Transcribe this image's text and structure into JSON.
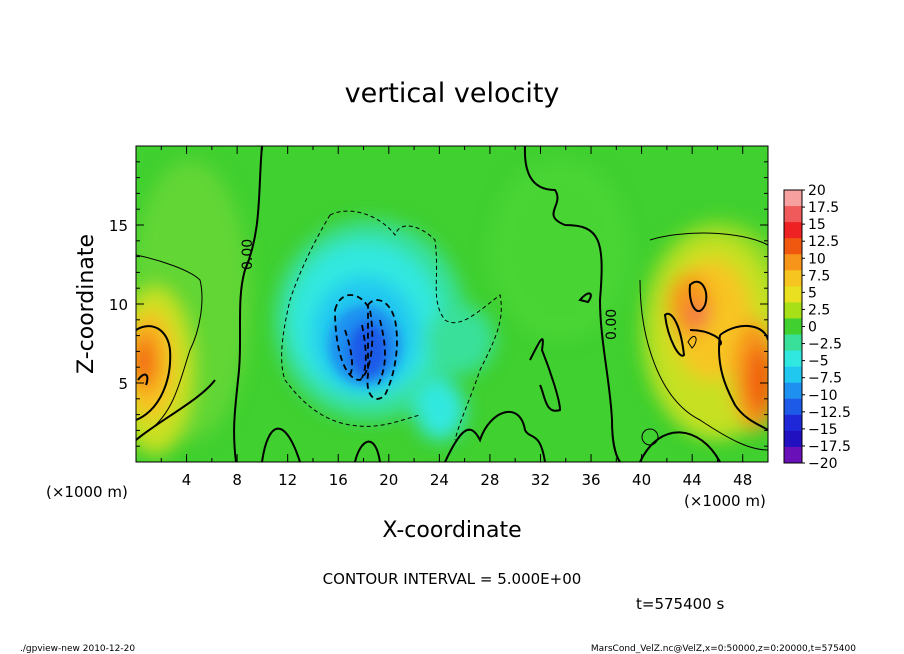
{
  "chart_data": {
    "type": "heatmap",
    "title": "vertical velocity",
    "xlabel": "X-coordinate",
    "ylabel": "Z-coordinate",
    "x_unit_left": "(×1000 m)",
    "x_unit_right": "(×1000 m)",
    "xlim": [
      0,
      50
    ],
    "ylim": [
      0,
      20
    ],
    "xticks": [
      "4",
      "8",
      "12",
      "16",
      "20",
      "24",
      "28",
      "32",
      "36",
      "40",
      "44",
      "48"
    ],
    "xtick_values": [
      4,
      8,
      12,
      16,
      20,
      24,
      28,
      32,
      36,
      40,
      44,
      48
    ],
    "yticks": [
      "5",
      "10",
      "15"
    ],
    "ytick_values": [
      5,
      10,
      15
    ],
    "colorbar": {
      "labels": [
        "20",
        "17.5",
        "15",
        "12.5",
        "10",
        "7.5",
        "5",
        "2.5",
        "0",
        "−2.5",
        "−5",
        "−7.5",
        "−10",
        "−12.5",
        "−15",
        "−17.5",
        "−20"
      ],
      "colors": [
        "#f7a0a0",
        "#f05a5a",
        "#ee2222",
        "#f05810",
        "#f7951a",
        "#f7c520",
        "#e8e020",
        "#a8e018",
        "#40d030",
        "#38e09a",
        "#30e8e0",
        "#20c8f0",
        "#1e90f0",
        "#1e5ae8",
        "#1e28d8",
        "#2010c0",
        "#6a10b8"
      ]
    },
    "contour_label": "0.00",
    "contour_interval": "CONTOUR INTERVAL = 5.000E+00",
    "time": "t=575400 s",
    "features": [
      {
        "kind": "updraft",
        "x": 0.8,
        "z": 6,
        "value": 13
      },
      {
        "kind": "downdraft",
        "x": 18.5,
        "z": 7.5,
        "value": -12
      },
      {
        "kind": "updraft",
        "x": 47,
        "z": 7,
        "value": 13
      },
      {
        "kind": "updraft",
        "x": 44,
        "z": 9,
        "value": 8
      }
    ]
  },
  "footer": {
    "left": "./gpview-new 2010-12-20",
    "right": "MarsCond_VelZ.nc@VelZ,x=0:50000,z=0:20000,t=575400"
  },
  "colors": {
    "background": "#40d030",
    "frame": "#000000"
  }
}
